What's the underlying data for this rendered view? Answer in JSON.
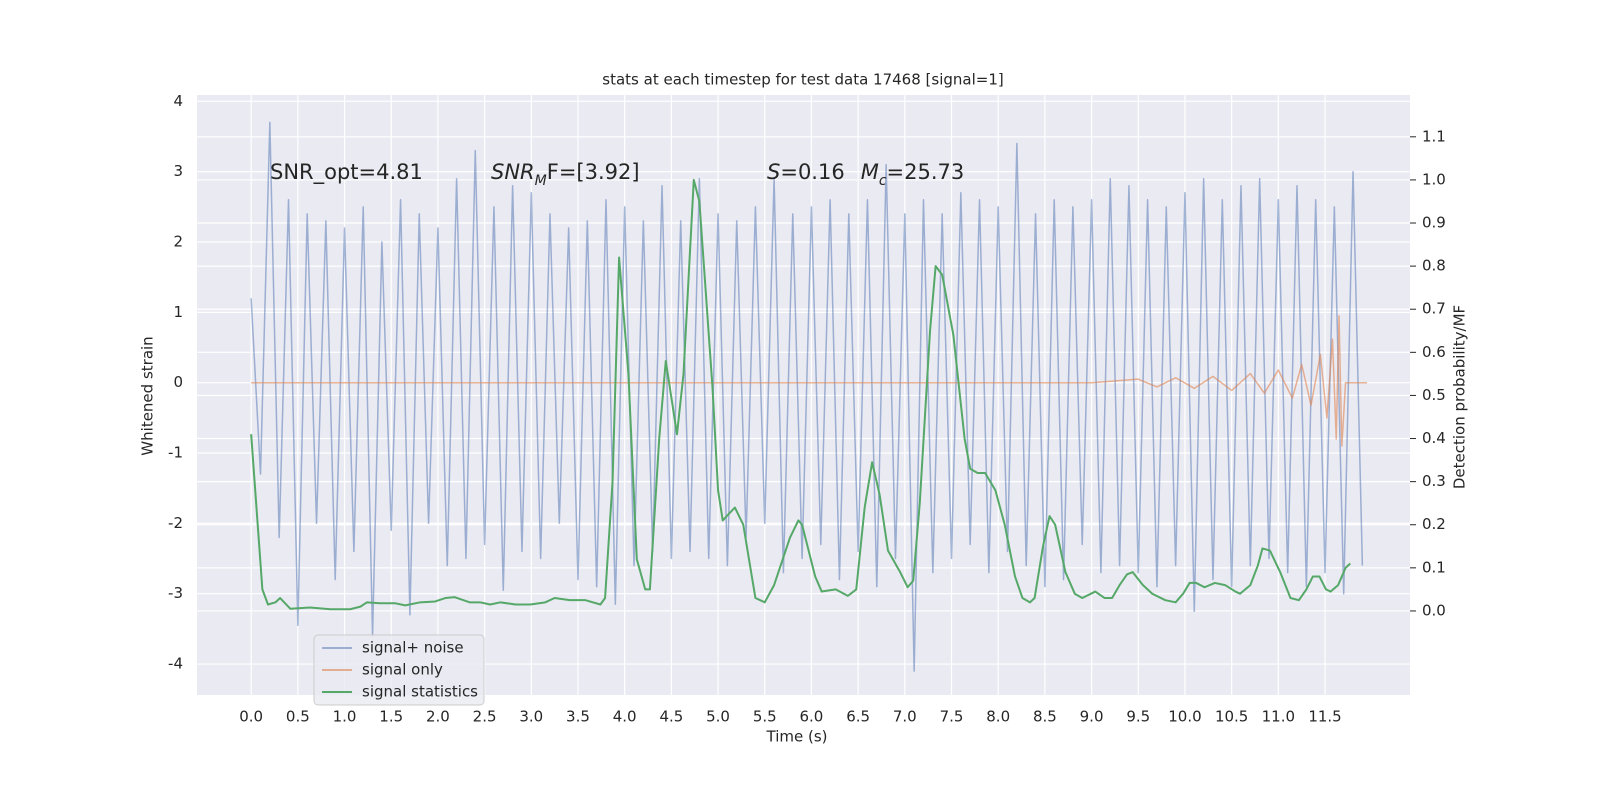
{
  "chart_data": {
    "type": "line",
    "title": "stats at each timestep for test data 17468 [signal=1]",
    "xlabel": "Time (s)",
    "ylabel": "Whitened strain",
    "y2label": "Detection probability/MF",
    "annotations": [
      "SNR_opt=4.81",
      [
        "SNR",
        "M",
        "F=[3.92]"
      ],
      [
        "S",
        "=0.16",
        "M",
        "c",
        "=25.73"
      ]
    ],
    "xlim": [
      -0.58,
      12.41
    ],
    "ylim": [
      -4.44,
      4.09
    ],
    "y2lim": [
      -0.195,
      1.197
    ],
    "xticks": [
      {
        "value": 0,
        "label": "0.0"
      },
      0.5,
      {
        "value": 1,
        "label": "1.0"
      },
      1.5,
      {
        "value": 2,
        "label": "2.0"
      },
      2.5,
      {
        "value": 3,
        "label": "3.0"
      },
      3.5,
      {
        "value": 4,
        "label": "4.0"
      },
      4.5,
      {
        "value": 5,
        "label": "5.0"
      },
      5.5,
      {
        "value": 6,
        "label": "6.0"
      },
      6.5,
      {
        "value": 7,
        "label": "7.0"
      },
      7.5,
      {
        "value": 8,
        "label": "8.0"
      },
      8.5,
      {
        "value": 9,
        "label": "9.0"
      },
      9.5,
      {
        "value": 10,
        "label": "10.0"
      },
      10.5,
      {
        "value": 11,
        "label": "11.0"
      },
      11.5
    ],
    "yticks": [
      -4,
      -3,
      -2,
      -1,
      0,
      1,
      2,
      3,
      4
    ],
    "y2ticks": [
      {
        "value": 0,
        "label": "0.0"
      },
      0.1,
      0.2,
      0.3,
      0.4,
      0.5,
      0.6,
      0.7,
      0.8,
      0.9,
      {
        "value": 1,
        "label": "1.0"
      },
      1.1
    ],
    "grid": true,
    "legend": "lower left",
    "series": [
      {
        "name": "signal+ noise",
        "color": "#4c72b0",
        "opacity": 0.5,
        "x": [
          0,
          0.1,
          0.2,
          0.3,
          0.4,
          0.5,
          0.6,
          0.7,
          0.8,
          0.9,
          1,
          1.1,
          1.2,
          1.3,
          1.4,
          1.5,
          1.6,
          1.7,
          1.8,
          1.9,
          2,
          2.1,
          2.2,
          2.3,
          2.4,
          2.5,
          2.6,
          2.7,
          2.8,
          2.9,
          3,
          3.1,
          3.2,
          3.3,
          3.4,
          3.5,
          3.6,
          3.7,
          3.8,
          3.9,
          4,
          4.1,
          4.2,
          4.3,
          4.4,
          4.5,
          4.6,
          4.7,
          4.8,
          4.9,
          5,
          5.1,
          5.2,
          5.3,
          5.4,
          5.5,
          5.6,
          5.7,
          5.8,
          5.9,
          6,
          6.1,
          6.2,
          6.3,
          6.4,
          6.5,
          6.6,
          6.7,
          6.8,
          6.9,
          7,
          7.1,
          7.2,
          7.3,
          7.4,
          7.5,
          7.6,
          7.7,
          7.8,
          7.9,
          8,
          8.1,
          8.2,
          8.3,
          8.4,
          8.5,
          8.6,
          8.7,
          8.8,
          8.9,
          9,
          9.1,
          9.2,
          9.3,
          9.4,
          9.5,
          9.6,
          9.7,
          9.8,
          9.9,
          10,
          10.1,
          10.2,
          10.3,
          10.4,
          10.5,
          10.6,
          10.7,
          10.8,
          10.9,
          11,
          11.1,
          11.2,
          11.3,
          11.4,
          11.5,
          11.6,
          11.7,
          11.8,
          11.9
        ],
        "values": [
          1.2,
          -1.3,
          3.7,
          -2.2,
          2.6,
          -3.45,
          2.4,
          -2.0,
          2.3,
          -2.8,
          2.2,
          -2.4,
          2.5,
          -3.6,
          2.0,
          -2.1,
          2.6,
          -3.3,
          2.4,
          -2.0,
          2.2,
          -2.6,
          2.9,
          -2.5,
          3.3,
          -2.3,
          2.5,
          -2.95,
          2.8,
          -2.4,
          2.7,
          -2.5,
          2.4,
          -2.0,
          2.2,
          -2.8,
          2.3,
          -2.9,
          2.6,
          -3.15,
          2.5,
          -2.6,
          2.3,
          -2.4,
          2.8,
          -2.5,
          2.3,
          -2.4,
          2.9,
          -2.5,
          2.4,
          -2.6,
          2.3,
          -2.2,
          2.5,
          -2.0,
          2.9,
          -2.7,
          2.4,
          -2.5,
          2.5,
          -2.3,
          2.6,
          -2.8,
          2.4,
          -2.4,
          2.6,
          -2.9,
          3.1,
          -2.5,
          2.4,
          -4.1,
          2.6,
          -2.7,
          2.4,
          -2.5,
          2.7,
          -2.3,
          2.6,
          -2.7,
          2.5,
          -2.4,
          3.4,
          -2.6,
          2.4,
          -2.9,
          2.6,
          -2.8,
          2.5,
          -2.3,
          2.6,
          -2.7,
          2.9,
          -2.6,
          2.8,
          -2.7,
          2.6,
          -2.9,
          2.5,
          -2.6,
          2.7,
          -3.25,
          2.9,
          -2.8,
          2.6,
          -2.9,
          2.8,
          -2.6,
          2.9,
          -2.5,
          2.6,
          -2.7,
          2.8,
          -2.9,
          2.6,
          -2.7,
          2.5,
          -3.0,
          3.0,
          -2.6
        ]
      },
      {
        "name": "signal only",
        "color": "#dd8452",
        "opacity": 0.6,
        "x": [
          0,
          9,
          9.5,
          9.7,
          9.9,
          10.1,
          10.3,
          10.5,
          10.7,
          10.85,
          11,
          11.15,
          11.25,
          11.35,
          11.45,
          11.52,
          11.58,
          11.62,
          11.65,
          11.68,
          11.72,
          11.95
        ],
        "values": [
          0,
          0,
          0.05,
          -0.06,
          0.07,
          -0.08,
          0.09,
          -0.11,
          0.13,
          -0.15,
          0.18,
          -0.22,
          0.26,
          -0.32,
          0.4,
          -0.5,
          0.62,
          -0.8,
          0.95,
          -0.9,
          0,
          0
        ]
      },
      {
        "name": "signal statistics",
        "color": "#55a868",
        "opacity": 1,
        "axis": "y2",
        "x": [
          0,
          0.12,
          0.18,
          0.26,
          0.31,
          0.42,
          0.63,
          0.85,
          1.06,
          1.17,
          1.24,
          1.38,
          1.54,
          1.65,
          1.81,
          1.97,
          2.08,
          2.18,
          2.34,
          2.45,
          2.56,
          2.67,
          2.83,
          2.99,
          3.15,
          3.25,
          3.41,
          3.58,
          3.74,
          3.79,
          3.87,
          3.94,
          4.04,
          4.13,
          4.22,
          4.27,
          4.37,
          4.44,
          4.56,
          4.63,
          4.74,
          4.8,
          4.94,
          5.0,
          5.05,
          5.18,
          5.27,
          5.4,
          5.5,
          5.6,
          5.77,
          5.86,
          5.9,
          6.04,
          6.11,
          6.26,
          6.39,
          6.48,
          6.57,
          6.65,
          6.73,
          6.82,
          6.95,
          7.03,
          7.09,
          7.16,
          7.27,
          7.33,
          7.4,
          7.52,
          7.64,
          7.7,
          7.78,
          7.86,
          7.97,
          8.07,
          8.18,
          8.26,
          8.34,
          8.39,
          8.48,
          8.55,
          8.61,
          8.72,
          8.82,
          8.9,
          9.04,
          9.14,
          9.22,
          9.3,
          9.38,
          9.44,
          9.55,
          9.65,
          9.79,
          9.9,
          9.98,
          10.05,
          10.12,
          10.21,
          10.32,
          10.43,
          10.54,
          10.59,
          10.7,
          10.78,
          10.83,
          10.91,
          11.02,
          11.13,
          11.22,
          11.3,
          11.37,
          11.44,
          11.51,
          11.56,
          11.64,
          11.72,
          11.77
        ],
        "values": [
          0.41,
          0.05,
          0.015,
          0.02,
          0.03,
          0.005,
          0.008,
          0.004,
          0.004,
          0.01,
          0.02,
          0.018,
          0.018,
          0.013,
          0.02,
          0.022,
          0.03,
          0.032,
          0.02,
          0.02,
          0.015,
          0.02,
          0.015,
          0.015,
          0.02,
          0.03,
          0.025,
          0.025,
          0.015,
          0.03,
          0.3,
          0.82,
          0.55,
          0.12,
          0.05,
          0.05,
          0.4,
          0.58,
          0.41,
          0.55,
          1.0,
          0.95,
          0.52,
          0.28,
          0.21,
          0.24,
          0.2,
          0.03,
          0.02,
          0.06,
          0.17,
          0.21,
          0.2,
          0.08,
          0.045,
          0.05,
          0.035,
          0.05,
          0.24,
          0.345,
          0.27,
          0.14,
          0.09,
          0.055,
          0.07,
          0.25,
          0.65,
          0.8,
          0.78,
          0.64,
          0.4,
          0.33,
          0.32,
          0.32,
          0.28,
          0.2,
          0.08,
          0.03,
          0.02,
          0.03,
          0.15,
          0.22,
          0.2,
          0.09,
          0.04,
          0.03,
          0.045,
          0.03,
          0.03,
          0.06,
          0.085,
          0.09,
          0.06,
          0.04,
          0.025,
          0.02,
          0.04,
          0.065,
          0.065,
          0.055,
          0.065,
          0.06,
          0.045,
          0.04,
          0.06,
          0.105,
          0.145,
          0.14,
          0.09,
          0.03,
          0.025,
          0.05,
          0.08,
          0.08,
          0.05,
          0.045,
          0.06,
          0.1,
          0.11
        ]
      }
    ]
  }
}
